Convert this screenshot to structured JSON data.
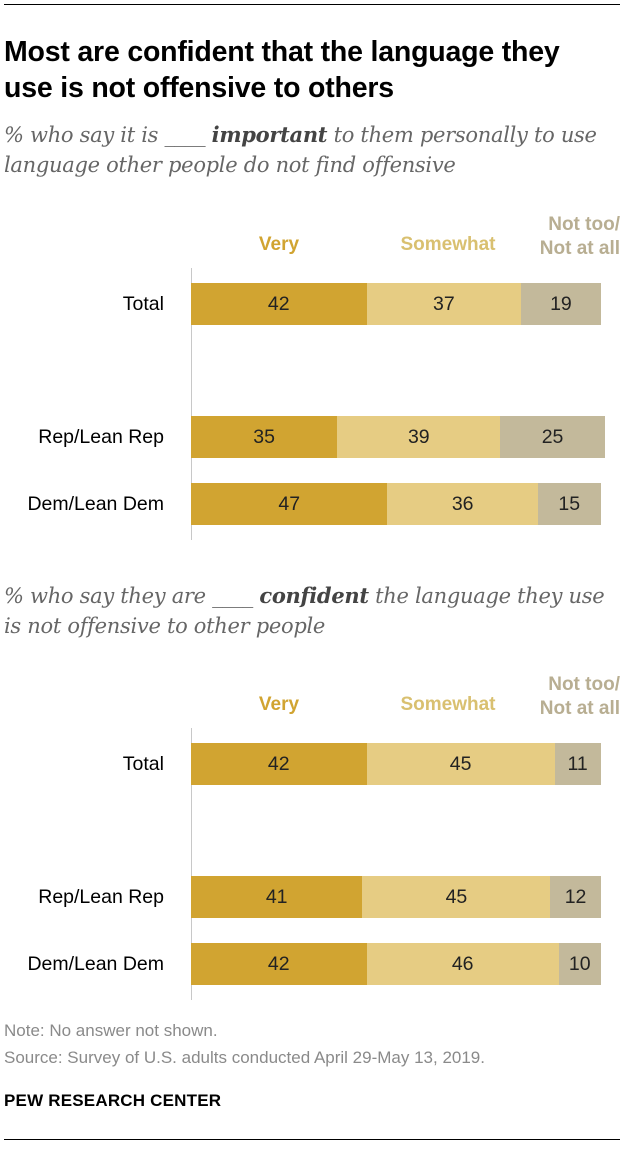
{
  "title": "Most are confident that the language they use is not offensive to others",
  "chart_data": [
    {
      "type": "bar",
      "orientation": "horizontal",
      "stacked": true,
      "subtitle_pre": "% who say it is ____ ",
      "subtitle_bold": "important",
      "subtitle_post": " to them personally to use language other people do not find offensive",
      "categories": [
        "Total",
        "Rep/Lean Rep",
        "Dem/Lean Dem"
      ],
      "series": [
        {
          "name": "Very",
          "values": [
            42,
            35,
            47
          ],
          "color": "#d1a431"
        },
        {
          "name": "Somewhat",
          "values": [
            37,
            39,
            36
          ],
          "color": "#e6cc83"
        },
        {
          "name": "Not too/ Not at all",
          "values": [
            19,
            25,
            15
          ],
          "color": "#c3b99b"
        }
      ],
      "legend_placement": "top",
      "xlim": [
        0,
        100
      ],
      "grid": false
    },
    {
      "type": "bar",
      "orientation": "horizontal",
      "stacked": true,
      "subtitle_pre": "% who say they are ____ ",
      "subtitle_bold": "confident",
      "subtitle_post": " the language they use is not offensive to other people",
      "categories": [
        "Total",
        "Rep/Lean Rep",
        "Dem/Lean Dem"
      ],
      "series": [
        {
          "name": "Very",
          "values": [
            42,
            41,
            42
          ],
          "color": "#d1a431"
        },
        {
          "name": "Somewhat",
          "values": [
            45,
            45,
            46
          ],
          "color": "#e6cc83"
        },
        {
          "name": "Not too/ Not at all",
          "values": [
            11,
            12,
            10
          ],
          "color": "#c3b99b"
        }
      ],
      "legend_placement": "top",
      "xlim": [
        0,
        100
      ],
      "grid": false
    }
  ],
  "legend_colors": {
    "very": "#d1a431",
    "somewhat": "#d9c070",
    "not": "#b8ae92"
  },
  "note": "Note: No answer not shown.",
  "source": "Source: Survey of U.S. adults conducted April 29-May 13, 2019.",
  "org": "PEW RESEARCH CENTER"
}
